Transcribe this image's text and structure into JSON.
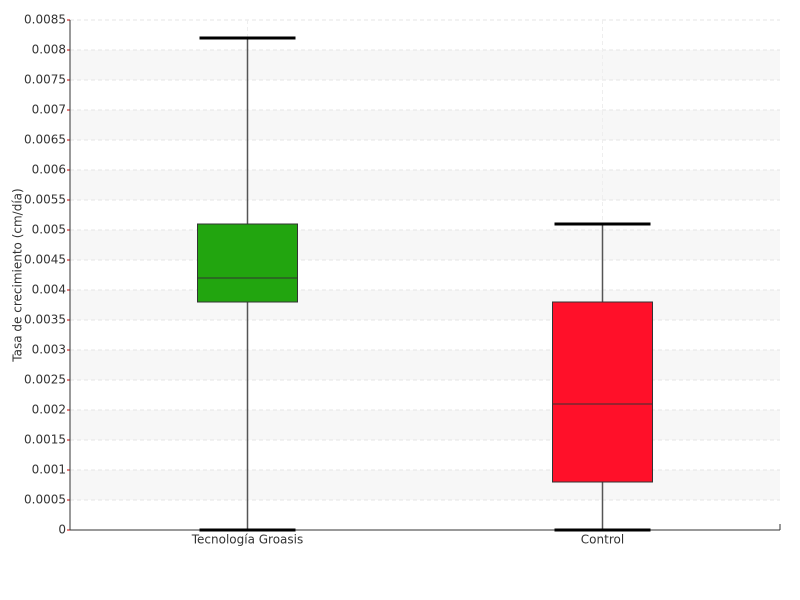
{
  "chart_data": {
    "type": "box",
    "y_label": "Tasa de crecimiento (cm/día)",
    "categories": [
      "Tecnología Groasis",
      "Control"
    ],
    "boxes": [
      {
        "min": 0,
        "q1": 0.0038,
        "median": 0.0042,
        "q3": 0.0051,
        "max": 0.0082,
        "color": "#22a50f"
      },
      {
        "min": 0,
        "q1": 0.0008,
        "median": 0.0021,
        "q3": 0.0038,
        "max": 0.0051,
        "color": "#ff1029"
      }
    ],
    "ylim": [
      0,
      0.0085
    ],
    "yticks": [
      0,
      0.0005,
      0.001,
      0.0015,
      0.002,
      0.0025,
      0.003,
      0.0035,
      0.004,
      0.0045,
      0.005,
      0.0055,
      0.006,
      0.0065,
      0.007,
      0.0075,
      0.008,
      0.0085
    ],
    "grid": true
  }
}
